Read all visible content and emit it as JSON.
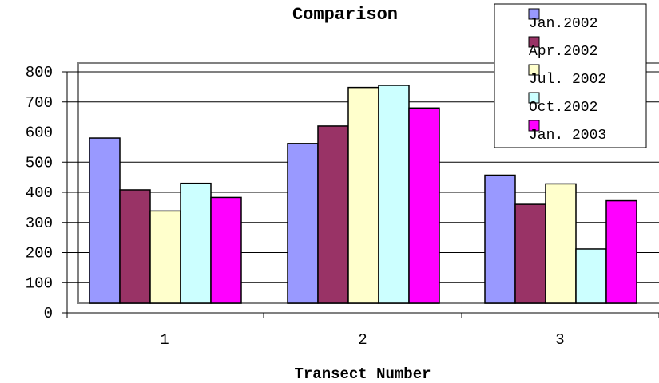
{
  "chart_data": {
    "type": "bar",
    "title": "Comparison",
    "xlabel": "Transect Number",
    "ylabel": "",
    "categories": [
      "1",
      "2",
      "3"
    ],
    "ylim": [
      0,
      800
    ],
    "yticks": [
      0,
      100,
      200,
      300,
      400,
      500,
      600,
      700,
      800
    ],
    "grid": true,
    "legend_position": "top-right",
    "series": [
      {
        "name": "Jan.2002",
        "color": "#9999FF",
        "values": [
          580,
          562,
          457
        ]
      },
      {
        "name": "Apr.2002",
        "color": "#993366",
        "values": [
          408,
          620,
          360
        ]
      },
      {
        "name": "Jul. 2002",
        "color": "#FFFFCC",
        "values": [
          338,
          748,
          428
        ]
      },
      {
        "name": "Oct.2002",
        "color": "#CCFFFF",
        "values": [
          430,
          755,
          212
        ]
      },
      {
        "name": "Jan. 2003",
        "color": "#FF00FF",
        "values": [
          383,
          680,
          372
        ]
      }
    ]
  }
}
